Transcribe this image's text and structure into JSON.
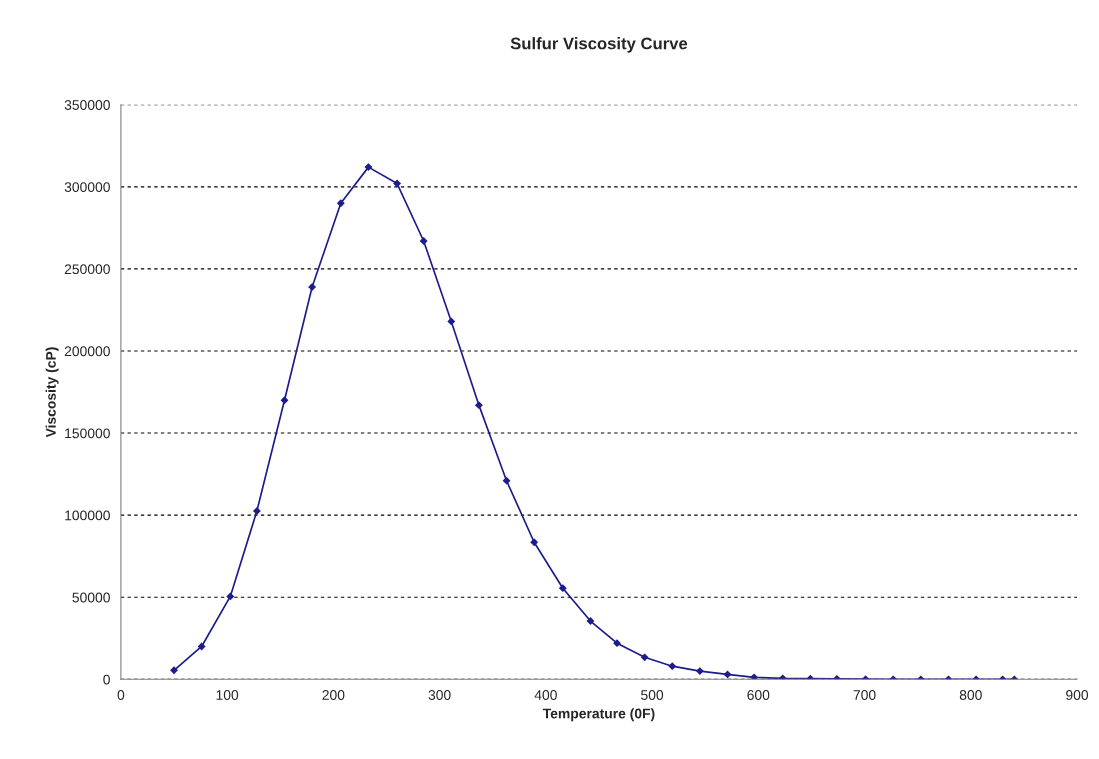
{
  "chart_data": {
    "type": "line",
    "title": "Sulfur Viscosity Curve",
    "xlabel": "Temperature (0F)",
    "ylabel": "Viscosity (cP)",
    "x": [
      50,
      76,
      103,
      128,
      154,
      180,
      207,
      233,
      260,
      285,
      311,
      337,
      363,
      389,
      416,
      442,
      467,
      493,
      519,
      545,
      571,
      596,
      623,
      649,
      674,
      701,
      727,
      753,
      779,
      805,
      830,
      841
    ],
    "series": [
      {
        "color": "#1c1c8c",
        "values": [
          5500,
          20000,
          50500,
          102500,
          170000,
          239000,
          290000,
          312000,
          302000,
          267000,
          218000,
          167000,
          121000,
          83500,
          55500,
          35500,
          22000,
          13400,
          8000,
          5000,
          3000,
          1200,
          600,
          400,
          300,
          100,
          0,
          0,
          0,
          0,
          0,
          0
        ]
      }
    ],
    "xlim": [
      0,
      900
    ],
    "xticks": [
      0,
      100,
      200,
      300,
      400,
      500,
      600,
      700,
      800,
      900
    ],
    "ylim": [
      0,
      350000
    ],
    "yticks": [
      0,
      50000,
      100000,
      150000,
      200000,
      250000,
      300000,
      350000
    ],
    "grid": "y",
    "marker": "diamond",
    "line_style": "solid"
  }
}
